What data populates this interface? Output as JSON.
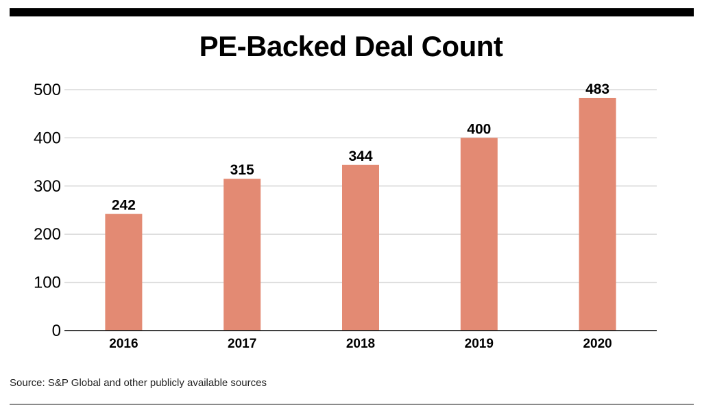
{
  "title": "PE-Backed Deal Count",
  "source": "Source: S&P Global and other publicly available sources",
  "chart_data": {
    "type": "bar",
    "title": "PE-Backed Deal Count",
    "categories": [
      "2016",
      "2017",
      "2018",
      "2019",
      "2020"
    ],
    "values": [
      242,
      315,
      344,
      400,
      483
    ],
    "data_labels": [
      "242",
      "315",
      "344",
      "400",
      "483"
    ],
    "ylim": [
      0,
      500
    ],
    "yticks": [
      0,
      100,
      200,
      300,
      400,
      500
    ],
    "xlabel": "",
    "ylabel": "",
    "grid": true,
    "bar_color": "#e38a73",
    "grid_color": "#d9d9d9"
  }
}
